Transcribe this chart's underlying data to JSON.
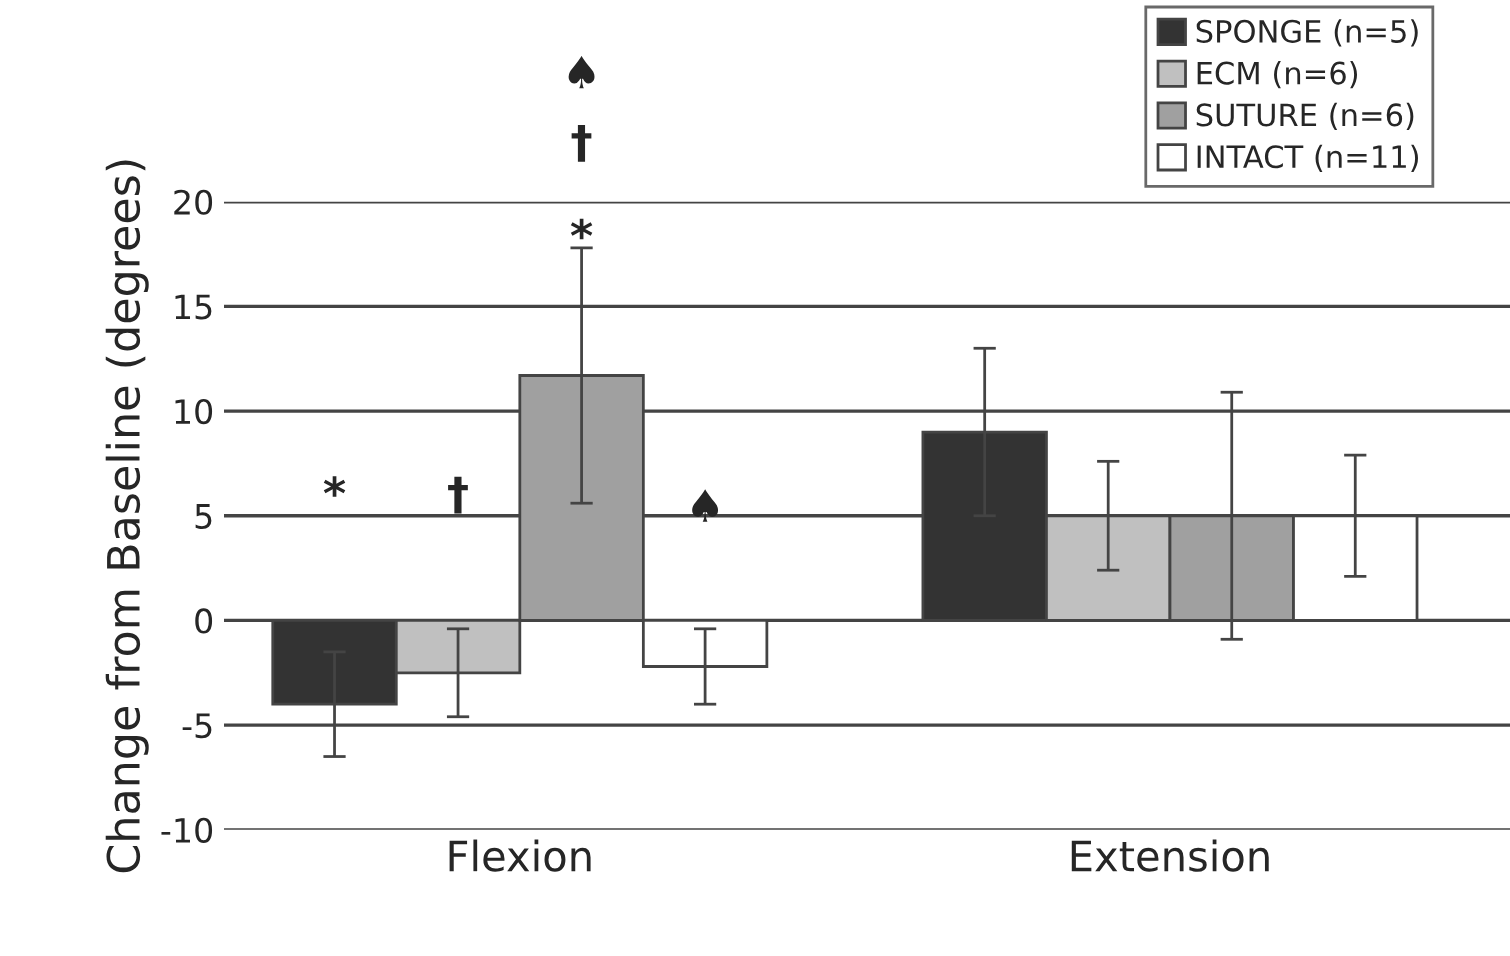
{
  "chart_data": {
    "type": "bar",
    "ylabel": "Change from Baseline (degrees)",
    "categories": [
      "Flexion",
      "Extension"
    ],
    "series": [
      {
        "name": "SPONGE (n=5)",
        "color": "#333333",
        "values": [
          -4.0,
          9.0
        ],
        "errors": [
          2.5,
          4.0
        ]
      },
      {
        "name": "ECM (n=6)",
        "color": "#c0c0c0",
        "values": [
          -2.5,
          5.0
        ],
        "errors": [
          2.1,
          2.6
        ]
      },
      {
        "name": "SUTURE (n=6)",
        "color": "#a0a0a0",
        "values": [
          11.7,
          5.0
        ],
        "errors": [
          6.1,
          5.9
        ]
      },
      {
        "name": "INTACT (n=11)",
        "color": "#ffffff",
        "values": [
          -2.2,
          5.0
        ],
        "errors": [
          1.8,
          2.9
        ]
      }
    ],
    "ylim": [
      -10,
      20
    ],
    "yticks": [
      -10,
      -5,
      0,
      5,
      10,
      15,
      20
    ],
    "grid": "y",
    "legend": "top right",
    "annotations": [
      "*",
      "†",
      "♠",
      "*",
      "†",
      "♠"
    ]
  }
}
